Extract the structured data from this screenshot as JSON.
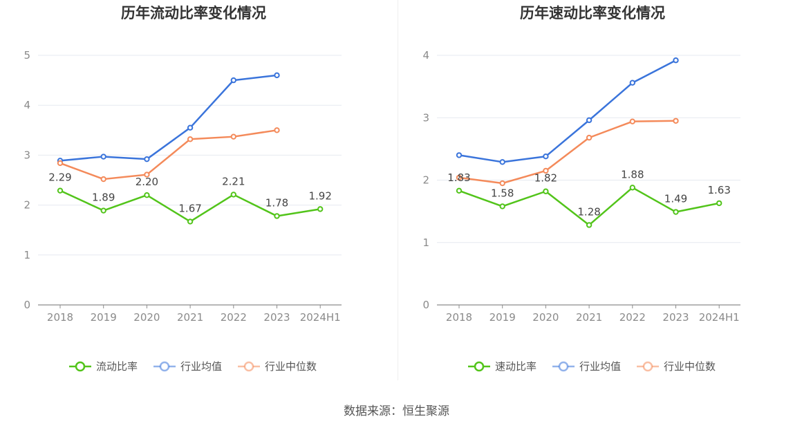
{
  "source": "数据来源：恒生聚源",
  "chart_data": [
    {
      "type": "line",
      "title": "历年流动比率变化情况",
      "categories": [
        "2018",
        "2019",
        "2020",
        "2021",
        "2022",
        "2023",
        "2024H1"
      ],
      "ylim": [
        0,
        5
      ],
      "yticks": [
        "0",
        "1",
        "2",
        "3",
        "4",
        "5"
      ],
      "grid": true,
      "legend_position": "bottom",
      "series": [
        {
          "name": "流动比率",
          "color": "#52c41a",
          "values": [
            2.29,
            1.89,
            2.2,
            1.67,
            2.21,
            1.78,
            1.92
          ],
          "labels": [
            "2.29",
            "1.89",
            "2.20",
            "1.67",
            "2.21",
            "1.78",
            "1.92"
          ]
        },
        {
          "name": "行业均值",
          "color": "#3a74db",
          "values": [
            2.89,
            2.97,
            2.92,
            3.55,
            4.5,
            4.6,
            null
          ]
        },
        {
          "name": "行业中位数",
          "color": "#f48a5a",
          "values": [
            2.84,
            2.52,
            2.61,
            3.32,
            3.37,
            3.5,
            null
          ]
        }
      ]
    },
    {
      "type": "line",
      "title": "历年速动比率变化情况",
      "categories": [
        "2018",
        "2019",
        "2020",
        "2021",
        "2022",
        "2023",
        "2024H1"
      ],
      "ylim": [
        0,
        4
      ],
      "yticks": [
        "0",
        "1",
        "2",
        "3",
        "4"
      ],
      "grid": true,
      "legend_position": "bottom",
      "series": [
        {
          "name": "速动比率",
          "color": "#52c41a",
          "values": [
            1.83,
            1.58,
            1.82,
            1.28,
            1.88,
            1.49,
            1.63
          ],
          "labels": [
            "1.83",
            "1.58",
            "1.82",
            "1.28",
            "1.88",
            "1.49",
            "1.63"
          ]
        },
        {
          "name": "行业均值",
          "color": "#3a74db",
          "values": [
            2.4,
            2.29,
            2.38,
            2.96,
            3.56,
            3.92,
            null
          ]
        },
        {
          "name": "行业中位数",
          "color": "#f48a5a",
          "values": [
            2.04,
            1.95,
            2.15,
            2.68,
            2.94,
            2.95,
            null
          ]
        }
      ]
    }
  ]
}
